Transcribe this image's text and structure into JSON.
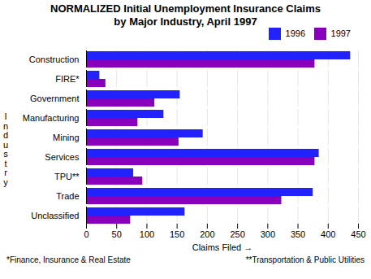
{
  "chart_data": {
    "type": "bar",
    "orientation": "horizontal",
    "title": "NORMALIZED Initial Unemployment Insurance Claims\nby Major Industry, April 1997",
    "xlabel": "Claims Filed",
    "ylabel": "I\nn\nd\nu\ns\nt\nr\ny",
    "categories": [
      "Construction",
      "FIRE*",
      "Government",
      "Manufacturing",
      "Mining",
      "Services",
      "TPU**",
      "Trade",
      "Unclassified"
    ],
    "series": [
      {
        "name": "1996",
        "color": "#2222ff",
        "values": [
          437,
          22,
          155,
          128,
          193,
          385,
          78,
          375,
          163
        ]
      },
      {
        "name": "1997",
        "color": "#8800bb",
        "values": [
          378,
          32,
          113,
          85,
          153,
          378,
          93,
          323,
          73
        ]
      }
    ],
    "xlim": [
      0,
      450
    ],
    "xticks": [
      0,
      50,
      100,
      150,
      200,
      250,
      300,
      350,
      400,
      450
    ],
    "grid": true,
    "legend": "right",
    "annotations": [
      "*Finance, Insurance & Real Estate",
      "**Transportation & Public Utilities"
    ]
  }
}
